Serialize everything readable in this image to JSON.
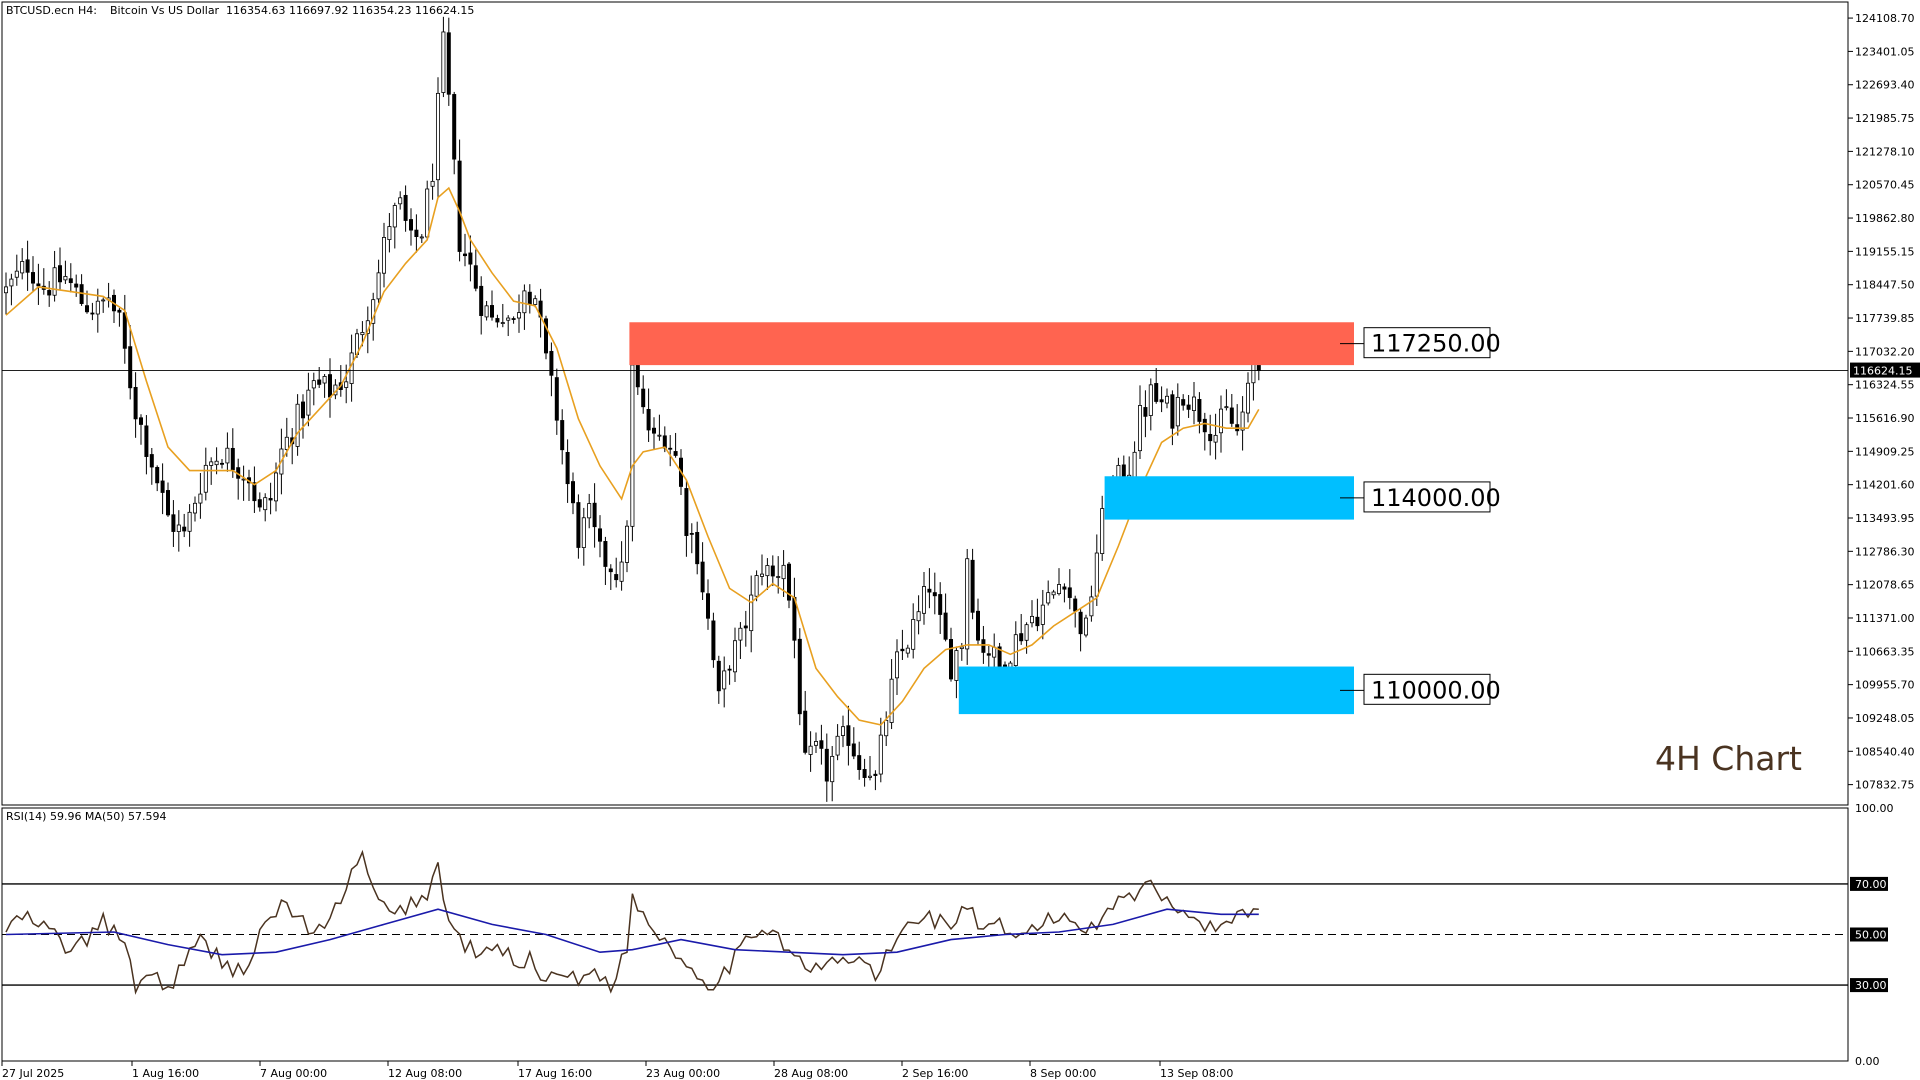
{
  "header": {
    "symbol": "BTCUSD.ecn",
    "timeframe": "H4:",
    "description": "Bitcoin Vs US Dollar",
    "ohlc": "116354.63 116697.92 116354.23 116624.15"
  },
  "annotation": "4H Chart",
  "colors": {
    "candle": "#000000",
    "ma": "#e8a020",
    "resistance_zone": "#ff6450",
    "support_zone": "#00bfff",
    "rsi_line": "#4a3320",
    "rsi_ma": "#1a1aaa"
  },
  "chart_data": [
    {
      "type": "candlestick",
      "title": "",
      "xlabel": "",
      "ylabel": "",
      "ylim": [
        107400,
        124450
      ],
      "grid": false,
      "x_ticks": [
        "27 Jul 2025",
        "1 Aug 16:00",
        "7 Aug 00:00",
        "12 Aug 08:00",
        "17 Aug 16:00",
        "23 Aug 00:00",
        "28 Aug 08:00",
        "2 Sep 16:00",
        "8 Sep 00:00",
        "13 Sep 08:00"
      ],
      "y_ticks": [
        "124108.70",
        "123401.05",
        "122693.40",
        "121985.75",
        "121278.10",
        "120570.45",
        "119862.80",
        "119155.15",
        "118447.50",
        "117739.85",
        "117032.20",
        "116324.55",
        "115616.90",
        "114909.25",
        "114201.60",
        "113493.95",
        "112786.30",
        "112078.65",
        "111371.00",
        "110663.35",
        "109955.70",
        "109248.05",
        "108540.40",
        "107832.75"
      ],
      "current_price": 116624.15,
      "current_price_label": "116624.15",
      "close_path": [
        [
          0,
          118300
        ],
        [
          4,
          118900
        ],
        [
          7,
          118400
        ],
        [
          11,
          118600
        ],
        [
          14,
          118100
        ],
        [
          17,
          117900
        ],
        [
          19,
          118200
        ],
        [
          21,
          117600
        ],
        [
          24,
          115800
        ],
        [
          27,
          114700
        ],
        [
          30,
          113500
        ],
        [
          33,
          113100
        ],
        [
          35,
          113900
        ],
        [
          37,
          114600
        ],
        [
          40,
          114900
        ],
        [
          42,
          114700
        ],
        [
          45,
          114400
        ],
        [
          47,
          113600
        ],
        [
          49,
          113900
        ],
        [
          51,
          114900
        ],
        [
          54,
          115600
        ],
        [
          57,
          116300
        ],
        [
          60,
          116200
        ],
        [
          63,
          116500
        ],
        [
          66,
          117600
        ],
        [
          69,
          118700
        ],
        [
          71,
          119800
        ],
        [
          73,
          120100
        ],
        [
          75,
          119300
        ],
        [
          77,
          119600
        ],
        [
          79,
          120900
        ],
        [
          81,
          123500
        ],
        [
          82,
          122300
        ],
        [
          84,
          119400
        ],
        [
          86,
          118800
        ],
        [
          88,
          118100
        ],
        [
          90,
          117700
        ],
        [
          92,
          117900
        ],
        [
          94,
          117600
        ],
        [
          96,
          118500
        ],
        [
          98,
          118200
        ],
        [
          100,
          116800
        ],
        [
          102,
          115700
        ],
        [
          104,
          114200
        ],
        [
          106,
          113100
        ],
        [
          108,
          113500
        ],
        [
          110,
          112700
        ],
        [
          112,
          112500
        ],
        [
          114,
          112300
        ],
        [
          115,
          113500
        ],
        [
          116,
          116600
        ],
        [
          118,
          115700
        ],
        [
          120,
          115100
        ],
        [
          122,
          115300
        ],
        [
          124,
          114800
        ],
        [
          126,
          113400
        ],
        [
          128,
          112800
        ],
        [
          130,
          111300
        ],
        [
          132,
          109600
        ],
        [
          134,
          110500
        ],
        [
          136,
          110900
        ],
        [
          138,
          111700
        ],
        [
          140,
          112500
        ],
        [
          142,
          112200
        ],
        [
          144,
          112600
        ],
        [
          146,
          110900
        ],
        [
          148,
          108200
        ],
        [
          150,
          108500
        ],
        [
          152,
          108100
        ],
        [
          154,
          108600
        ],
        [
          156,
          108900
        ],
        [
          158,
          108300
        ],
        [
          160,
          108200
        ],
        [
          161,
          107900
        ],
        [
          163,
          109300
        ],
        [
          165,
          110400
        ],
        [
          167,
          110900
        ],
        [
          169,
          111400
        ],
        [
          171,
          112100
        ],
        [
          173,
          111200
        ],
        [
          175,
          110400
        ],
        [
          177,
          110900
        ],
        [
          178,
          112700
        ],
        [
          180,
          110900
        ],
        [
          182,
          110700
        ],
        [
          184,
          110300
        ],
        [
          186,
          110700
        ],
        [
          188,
          111100
        ],
        [
          190,
          111400
        ],
        [
          192,
          111600
        ],
        [
          194,
          111900
        ],
        [
          196,
          112300
        ],
        [
          198,
          111400
        ],
        [
          200,
          111100
        ],
        [
          202,
          112800
        ],
        [
          204,
          114000
        ],
        [
          206,
          114300
        ],
        [
          208,
          114600
        ],
        [
          210,
          115600
        ],
        [
          212,
          116100
        ],
        [
          214,
          115900
        ],
        [
          216,
          115700
        ],
        [
          218,
          116200
        ],
        [
          220,
          115900
        ],
        [
          222,
          115600
        ],
        [
          224,
          115300
        ],
        [
          226,
          115700
        ],
        [
          228,
          115300
        ],
        [
          230,
          116100
        ],
        [
          231,
          116800
        ],
        [
          232,
          116624
        ]
      ],
      "ma_path": [
        [
          0,
          117800
        ],
        [
          6,
          118400
        ],
        [
          12,
          118300
        ],
        [
          18,
          118200
        ],
        [
          22,
          117900
        ],
        [
          26,
          116400
        ],
        [
          30,
          115000
        ],
        [
          34,
          114500
        ],
        [
          38,
          114500
        ],
        [
          42,
          114500
        ],
        [
          46,
          114200
        ],
        [
          50,
          114500
        ],
        [
          54,
          115300
        ],
        [
          58,
          115800
        ],
        [
          62,
          116300
        ],
        [
          66,
          117200
        ],
        [
          70,
          118300
        ],
        [
          74,
          118900
        ],
        [
          78,
          119400
        ],
        [
          80,
          120300
        ],
        [
          82,
          120500
        ],
        [
          84,
          120000
        ],
        [
          86,
          119400
        ],
        [
          90,
          118700
        ],
        [
          94,
          118100
        ],
        [
          98,
          118000
        ],
        [
          102,
          117100
        ],
        [
          106,
          115600
        ],
        [
          110,
          114600
        ],
        [
          114,
          113900
        ],
        [
          116,
          114600
        ],
        [
          118,
          114900
        ],
        [
          122,
          115000
        ],
        [
          126,
          114300
        ],
        [
          130,
          113100
        ],
        [
          134,
          112000
        ],
        [
          138,
          111700
        ],
        [
          142,
          112100
        ],
        [
          146,
          111800
        ],
        [
          150,
          110300
        ],
        [
          154,
          109700
        ],
        [
          158,
          109200
        ],
        [
          162,
          109100
        ],
        [
          166,
          109600
        ],
        [
          170,
          110300
        ],
        [
          174,
          110700
        ],
        [
          178,
          110800
        ],
        [
          182,
          110800
        ],
        [
          186,
          110600
        ],
        [
          190,
          110800
        ],
        [
          194,
          111200
        ],
        [
          198,
          111500
        ],
        [
          202,
          111800
        ],
        [
          206,
          112900
        ],
        [
          210,
          114100
        ],
        [
          214,
          115100
        ],
        [
          218,
          115400
        ],
        [
          222,
          115500
        ],
        [
          226,
          115400
        ],
        [
          230,
          115400
        ],
        [
          232,
          115800
        ]
      ],
      "zones": [
        {
          "name": "resistance",
          "label": "117250.00",
          "low": 116740,
          "high": 117650,
          "start_x": 116
        },
        {
          "name": "support-1",
          "label": "114000.00",
          "low": 113460,
          "high": 114380,
          "start_x": 204
        },
        {
          "name": "support-2",
          "label": "110000.00",
          "low": 109330,
          "high": 110340,
          "start_x": 177
        }
      ]
    },
    {
      "type": "line",
      "title": "RSI(14) 59.96 MA(50) 57.594",
      "xlabel": "",
      "ylabel": "",
      "ylim": [
        0,
        100
      ],
      "grid": false,
      "y_ticks": [
        "100.00",
        "70.00",
        "50.00",
        "30.00",
        "0.00"
      ],
      "levels": [
        70,
        50,
        30
      ],
      "series": [
        {
          "values_path": [
            [
              0,
              52
            ],
            [
              3,
              57
            ],
            [
              6,
              54
            ],
            [
              9,
              50
            ],
            [
              12,
              43
            ],
            [
              15,
              48
            ],
            [
              18,
              55
            ],
            [
              21,
              50
            ],
            [
              24,
              30
            ],
            [
              27,
              35
            ],
            [
              30,
              28
            ],
            [
              33,
              40
            ],
            [
              36,
              47
            ],
            [
              39,
              42
            ],
            [
              42,
              36
            ],
            [
              45,
              38
            ],
            [
              48,
              54
            ],
            [
              51,
              62
            ],
            [
              54,
              58
            ],
            [
              57,
              49
            ],
            [
              60,
              55
            ],
            [
              63,
              70
            ],
            [
              66,
              80
            ],
            [
              69,
              62
            ],
            [
              72,
              57
            ],
            [
              75,
              63
            ],
            [
              78,
              65
            ],
            [
              80,
              78
            ],
            [
              82,
              54
            ],
            [
              85,
              46
            ],
            [
              88,
              41
            ],
            [
              91,
              45
            ],
            [
              94,
              40
            ],
            [
              97,
              40
            ],
            [
              100,
              32
            ],
            [
              103,
              37
            ],
            [
              106,
              30
            ],
            [
              109,
              37
            ],
            [
              112,
              30
            ],
            [
              115,
              45
            ],
            [
              116,
              64
            ],
            [
              119,
              55
            ],
            [
              122,
              48
            ],
            [
              125,
              40
            ],
            [
              128,
              35
            ],
            [
              131,
              30
            ],
            [
              134,
              38
            ],
            [
              137,
              46
            ],
            [
              140,
              54
            ],
            [
              143,
              50
            ],
            [
              146,
              41
            ],
            [
              149,
              35
            ],
            [
              152,
              38
            ],
            [
              155,
              40
            ],
            [
              158,
              40
            ],
            [
              161,
              34
            ],
            [
              164,
              44
            ],
            [
              167,
              54
            ],
            [
              170,
              58
            ],
            [
              173,
              55
            ],
            [
              176,
              55
            ],
            [
              178,
              62
            ],
            [
              181,
              50
            ],
            [
              184,
              53
            ],
            [
              187,
              47
            ],
            [
              190,
              53
            ],
            [
              193,
              55
            ],
            [
              196,
              58
            ],
            [
              199,
              52
            ],
            [
              202,
              55
            ],
            [
              205,
              63
            ],
            [
              208,
              65
            ],
            [
              211,
              70
            ],
            [
              214,
              65
            ],
            [
              217,
              62
            ],
            [
              220,
              57
            ],
            [
              223,
              52
            ],
            [
              226,
              55
            ],
            [
              229,
              59
            ],
            [
              232,
              60
            ]
          ]
        },
        {
          "values_path": [
            [
              0,
              50
            ],
            [
              20,
              51
            ],
            [
              30,
              46
            ],
            [
              40,
              42
            ],
            [
              50,
              43
            ],
            [
              60,
              48
            ],
            [
              70,
              54
            ],
            [
              80,
              60
            ],
            [
              90,
              54
            ],
            [
              100,
              50
            ],
            [
              110,
              43
            ],
            [
              116,
              44
            ],
            [
              125,
              48
            ],
            [
              135,
              44
            ],
            [
              145,
              43
            ],
            [
              155,
              42
            ],
            [
              165,
              43
            ],
            [
              175,
              48
            ],
            [
              185,
              50
            ],
            [
              195,
              51
            ],
            [
              205,
              54
            ],
            [
              215,
              60
            ],
            [
              225,
              58
            ],
            [
              232,
              58
            ]
          ]
        }
      ]
    }
  ]
}
